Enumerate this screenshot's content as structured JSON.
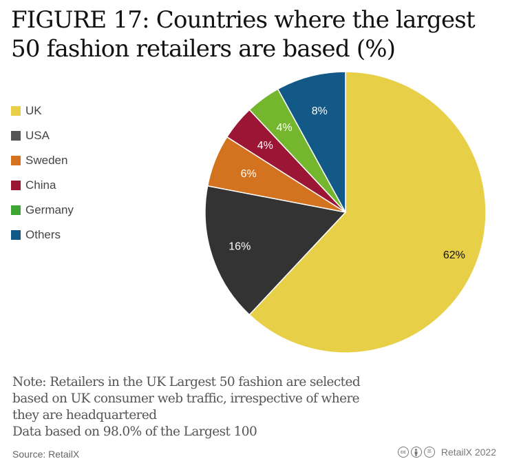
{
  "title": "FIGURE 17: Countries where the largest 50 fashion retailers are based (%)",
  "legend": [
    {
      "label": "UK",
      "color": "#E8CF48"
    },
    {
      "label": "USA",
      "color": "#555555"
    },
    {
      "label": "Sweden",
      "color": "#D4731F"
    },
    {
      "label": "China",
      "color": "#9B1535"
    },
    {
      "label": "Germany",
      "color": "#3FA535"
    },
    {
      "label": "Others",
      "color": "#135987"
    }
  ],
  "notes": [
    "Note: Retailers in the UK Largest 50 fashion are selected",
    "based on UK consumer web traffic, irrespective of where",
    "they are headquartered",
    "Data based on 98.0% of the Largest 100"
  ],
  "source": "Source: RetailX",
  "credit": {
    "icons": [
      "cc-icon",
      "by-icon",
      "nd-icon"
    ],
    "icon_glyphs": [
      "cc",
      "",
      "="
    ],
    "text": "RetailX 2022"
  },
  "chart_data": {
    "type": "pie",
    "title": "FIGURE 17: Countries where the largest 50 fashion retailers are based (%)",
    "categories": [
      "UK",
      "USA",
      "Sweden",
      "China",
      "Germany",
      "Others"
    ],
    "values": [
      62,
      16,
      6,
      4,
      4,
      8
    ],
    "labels": [
      "62%",
      "16%",
      "6%",
      "4%",
      "4%",
      "8%"
    ],
    "colors": [
      "#E8CF48",
      "#333333",
      "#D4731F",
      "#9B1535",
      "#74B72E",
      "#135987"
    ],
    "label_colors": [
      "#111111",
      "#ffffff",
      "#ffffff",
      "#ffffff",
      "#ffffff",
      "#ffffff"
    ],
    "start_angle_deg": 0,
    "direction": "clockwise",
    "legend_position": "left",
    "xlabel": "",
    "ylabel": ""
  }
}
